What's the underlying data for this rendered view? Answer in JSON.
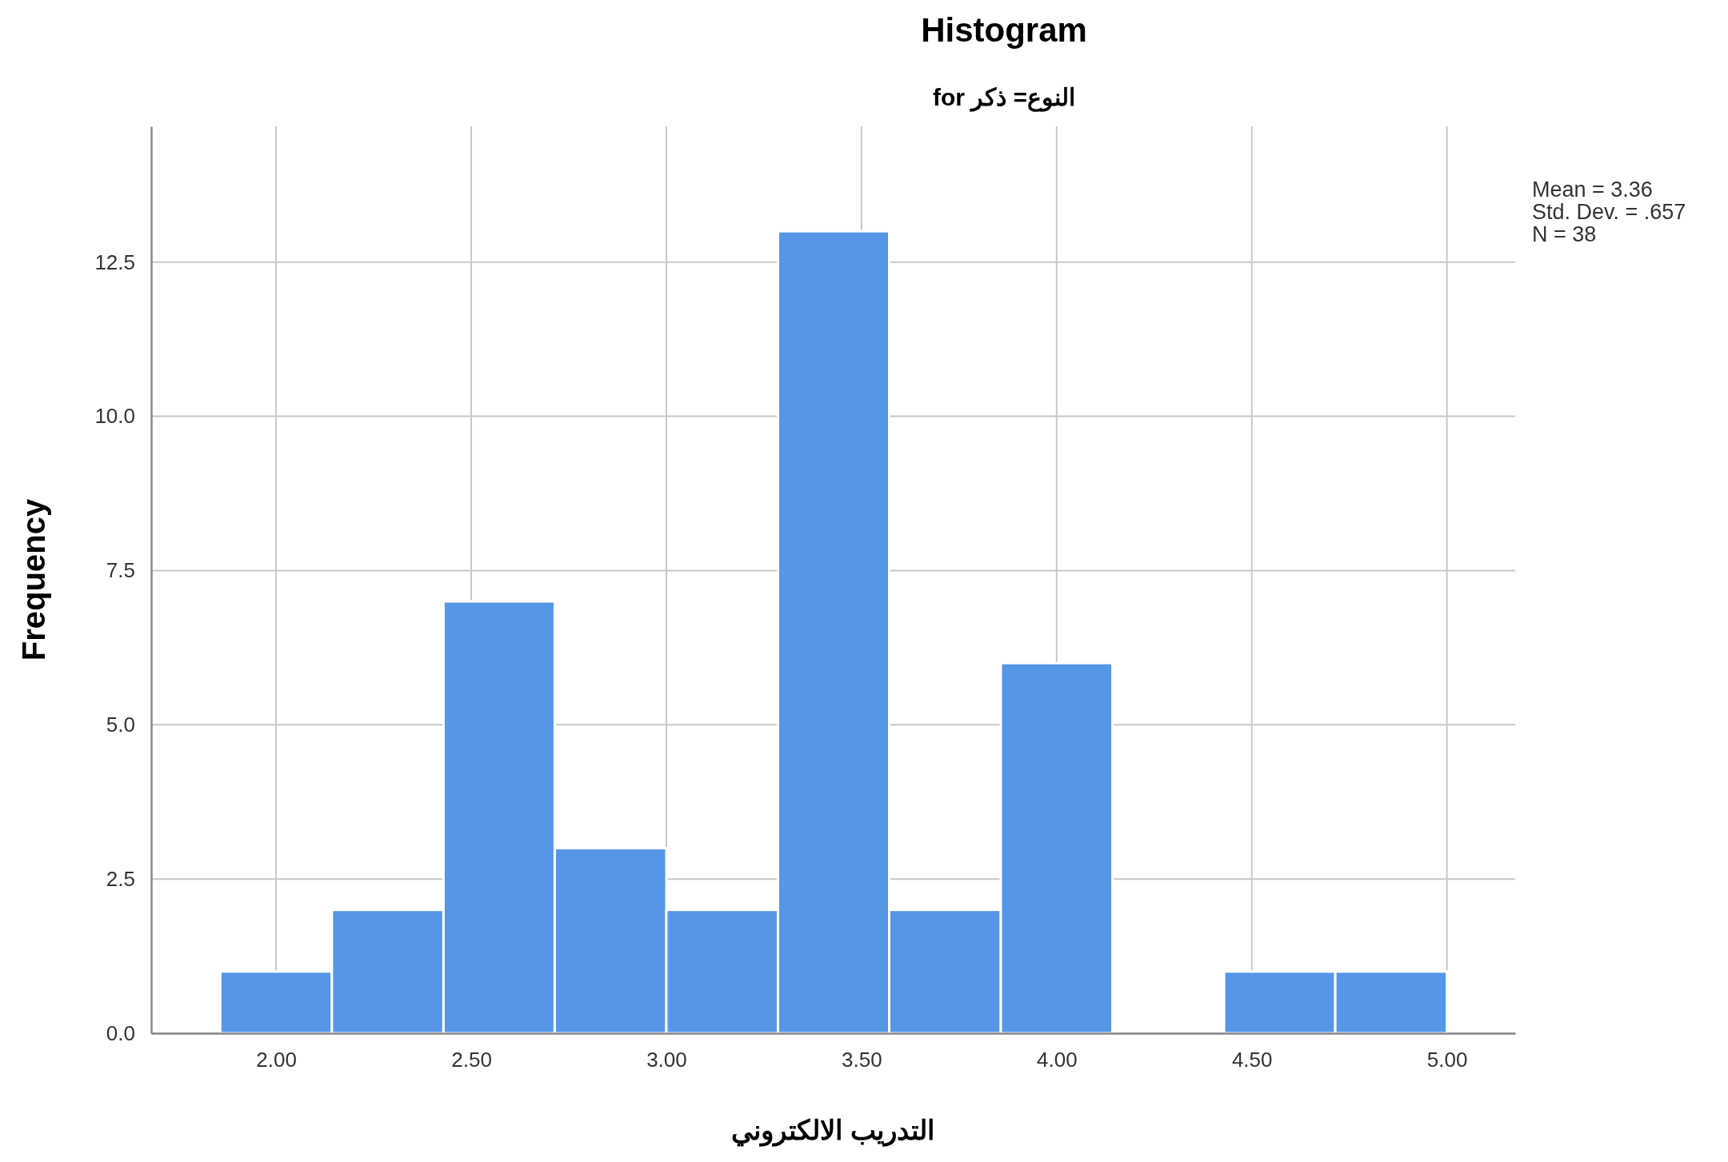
{
  "chart_data": {
    "type": "histogram",
    "title": "Histogram",
    "subtitle": "for النوع= ذكر",
    "xlabel": "التدريب الالكتروني",
    "ylabel": "Frequency",
    "annotations": [
      "Mean = 3.36",
      "Std. Dev. = .657",
      "N = 38"
    ],
    "bins": [
      1.857,
      2.143,
      2.429,
      2.714,
      3.0,
      3.286,
      3.571,
      3.857,
      4.143,
      4.429,
      4.714,
      5.0
    ],
    "values": [
      1,
      2,
      7,
      3,
      2,
      13,
      2,
      6,
      0,
      1,
      1
    ],
    "color": "#5596e6",
    "xlim": [
      1.68,
      5.175
    ],
    "xticks": [
      {
        "value": 2,
        "label": "2.00"
      },
      {
        "value": 2.5,
        "label": "2.50"
      },
      {
        "value": 3,
        "label": "3.00"
      },
      {
        "value": 3.5,
        "label": "3.50"
      },
      {
        "value": 4,
        "label": "4.00"
      },
      {
        "value": 4.5,
        "label": "4.50"
      },
      {
        "value": 5,
        "label": "5.00"
      }
    ],
    "ylim": [
      0,
      14.7
    ],
    "yticks": [
      {
        "value": 0,
        "label": "0.0"
      },
      {
        "value": 2.5,
        "label": "2.5"
      },
      {
        "value": 5,
        "label": "5.0"
      },
      {
        "value": 7.5,
        "label": "7.5"
      },
      {
        "value": 10,
        "label": "10.0"
      },
      {
        "value": 12.5,
        "label": "12.5"
      }
    ],
    "grid": true
  }
}
